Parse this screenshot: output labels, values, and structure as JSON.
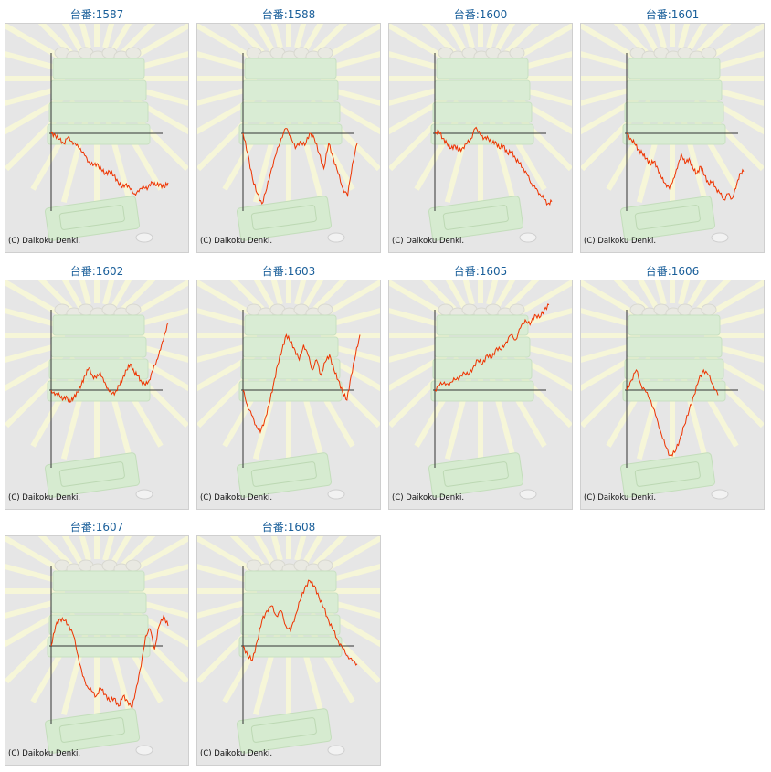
{
  "copyright": "(C) Daikoku Denki.",
  "colors": {
    "line": "#ee3300",
    "axis": "#333333",
    "title": "#1a5f9a"
  },
  "chart_data": [
    {
      "type": "line",
      "title": "台番:1587",
      "values": [
        0,
        -2,
        -6,
        -10,
        -4,
        -8,
        -12,
        -15,
        -22,
        -28,
        -32,
        -30,
        -36,
        -40,
        -38,
        -42,
        -48,
        -54,
        -50,
        -56,
        -60,
        -58,
        -52,
        -56,
        -48,
        -52,
        -50,
        -54,
        -49
      ]
    },
    {
      "type": "line",
      "title": "台番:1588",
      "values": [
        0,
        -20,
        -45,
        -60,
        -70,
        -55,
        -35,
        -20,
        -5,
        5,
        -2,
        -15,
        -8,
        -12,
        0,
        -5,
        -20,
        -35,
        -10,
        -25,
        -40,
        -55,
        -62,
        -30,
        -10
      ]
    },
    {
      "type": "line",
      "title": "台番:1600",
      "values": [
        0,
        2,
        -5,
        -10,
        -15,
        -12,
        -18,
        -14,
        -10,
        -5,
        5,
        2,
        -6,
        -3,
        -10,
        -8,
        -15,
        -12,
        -20,
        -18,
        -25,
        -30,
        -35,
        -42,
        -50,
        -55,
        -60,
        -65,
        -70,
        -68
      ]
    },
    {
      "type": "line",
      "title": "台番:1601",
      "values": [
        0,
        -5,
        -10,
        -16,
        -20,
        -25,
        -30,
        -28,
        -35,
        -45,
        -50,
        -55,
        -45,
        -35,
        -20,
        -30,
        -25,
        -35,
        -40,
        -33,
        -42,
        -50,
        -48,
        -55,
        -60,
        -66,
        -60,
        -65,
        -55,
        -40,
        -38
      ]
    },
    {
      "type": "line",
      "title": "台番:1602",
      "values": [
        0,
        -5,
        -3,
        -10,
        -6,
        -12,
        -7,
        -2,
        5,
        15,
        22,
        14,
        12,
        18,
        8,
        2,
        -4,
        -2,
        4,
        12,
        20,
        26,
        18,
        14,
        8,
        5,
        10,
        20,
        30,
        40,
        55,
        66
      ]
    },
    {
      "type": "line",
      "title": "台番:1603",
      "values": [
        0,
        -15,
        -25,
        -35,
        -42,
        -30,
        -15,
        5,
        25,
        40,
        55,
        48,
        40,
        30,
        45,
        35,
        20,
        30,
        15,
        28,
        35,
        20,
        10,
        -2,
        -10,
        15,
        35,
        55
      ]
    },
    {
      "type": "line",
      "title": "台番:1605",
      "values": [
        0,
        5,
        8,
        4,
        12,
        10,
        18,
        15,
        22,
        30,
        26,
        35,
        32,
        42,
        40,
        48,
        55,
        50,
        62,
        70,
        65,
        75,
        72,
        80,
        85
      ]
    },
    {
      "type": "line",
      "title": "台番:1606",
      "values": [
        0,
        10,
        20,
        5,
        -2,
        -10,
        -25,
        -40,
        -55,
        -65,
        -62,
        -50,
        -35,
        -20,
        -5,
        10,
        20,
        15,
        5,
        -5
      ]
    },
    {
      "type": "line",
      "title": "台番:1607",
      "values": [
        0,
        20,
        27,
        25,
        20,
        10,
        -10,
        -30,
        -40,
        -45,
        -50,
        -42,
        -48,
        -55,
        -52,
        -60,
        -50,
        -55,
        -62,
        -40,
        -20,
        10,
        17,
        -3,
        20,
        30,
        20
      ]
    },
    {
      "type": "line",
      "title": "台番:1608",
      "values": [
        0,
        -10,
        -14,
        5,
        25,
        35,
        40,
        30,
        35,
        20,
        15,
        30,
        45,
        58,
        65,
        60,
        48,
        38,
        25,
        15,
        5,
        -3,
        -10,
        -15,
        -18
      ]
    }
  ]
}
